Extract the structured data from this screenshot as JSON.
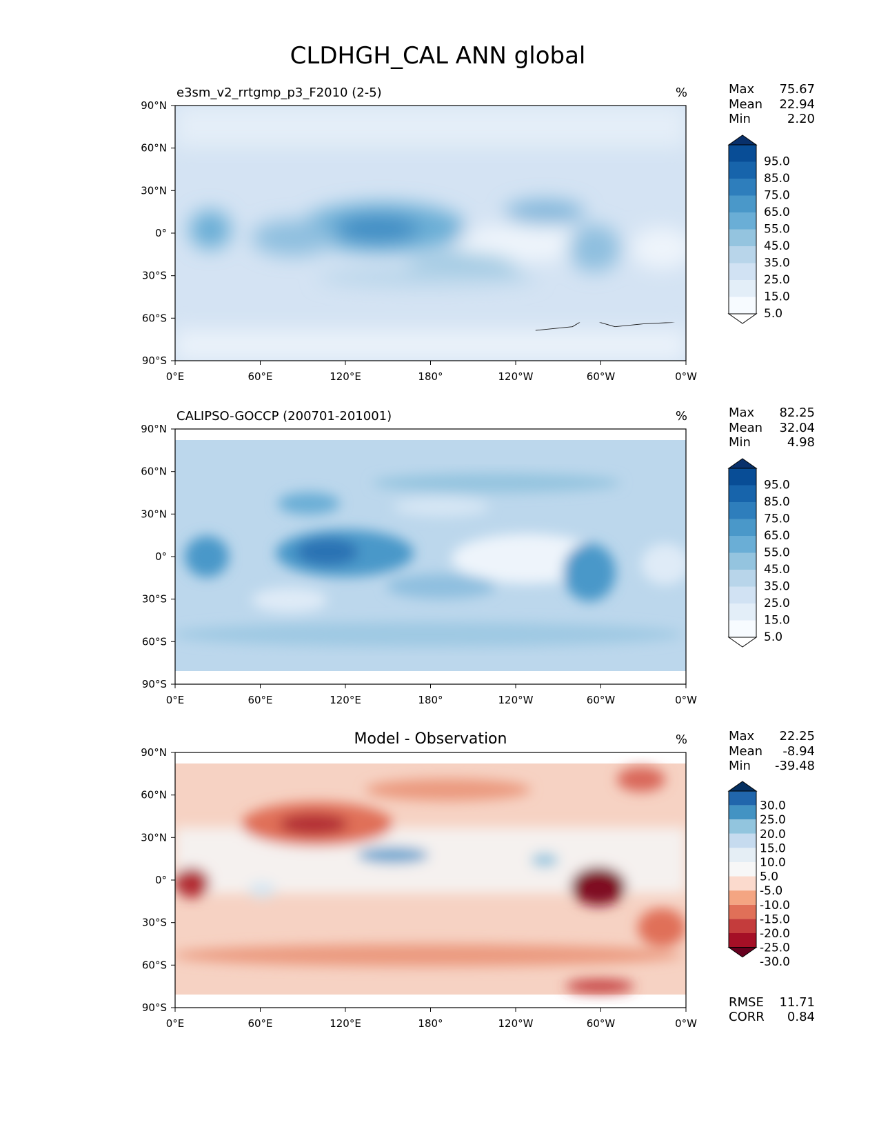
{
  "figure": {
    "title": "CLDHGH_CAL ANN global"
  },
  "x_tick_labels": [
    "0°E",
    "60°E",
    "120°E",
    "180°",
    "120°W",
    "60°W",
    "0°W"
  ],
  "y_tick_labels": [
    "90°N",
    "60°N",
    "30°N",
    "0°",
    "30°S",
    "60°S",
    "90°S"
  ],
  "chart_data": [
    {
      "type": "heatmap",
      "name": "model",
      "title": "",
      "left_title": "e3sm_v2_rrtgmp_p3_F2010 (2-5)",
      "units": "%",
      "stats": [
        {
          "label": "Max",
          "value": "75.67"
        },
        {
          "label": "Mean",
          "value": "22.94"
        },
        {
          "label": "Min",
          "value": "2.20"
        }
      ],
      "xlim": [
        0,
        360
      ],
      "ylim": [
        -90,
        90
      ],
      "colorbar": {
        "levels": [
          "95.0",
          "85.0",
          "75.0",
          "65.0",
          "55.0",
          "45.0",
          "35.0",
          "25.0",
          "15.0",
          "5.0"
        ],
        "colors": [
          "#08306b",
          "#084d96",
          "#1764ab",
          "#2e7ebc",
          "#4a98c9",
          "#6aaed6",
          "#94c4df",
          "#b8d5ea",
          "#d1e2f3",
          "#e3eef8",
          "#f7fbff"
        ]
      }
    },
    {
      "type": "heatmap",
      "name": "observation",
      "title": "",
      "left_title": "CALIPSO-GOCCP (200701-201001)",
      "units": "%",
      "stats": [
        {
          "label": "Max",
          "value": "82.25"
        },
        {
          "label": "Mean",
          "value": "32.04"
        },
        {
          "label": "Min",
          "value": "4.98"
        }
      ],
      "xlim": [
        0,
        360
      ],
      "ylim": [
        -90,
        90
      ],
      "colorbar": {
        "levels": [
          "95.0",
          "85.0",
          "75.0",
          "65.0",
          "55.0",
          "45.0",
          "35.0",
          "25.0",
          "15.0",
          "5.0"
        ],
        "colors": [
          "#08306b",
          "#084d96",
          "#1764ab",
          "#2e7ebc",
          "#4a98c9",
          "#6aaed6",
          "#94c4df",
          "#b8d5ea",
          "#d1e2f3",
          "#e3eef8",
          "#f7fbff"
        ]
      }
    },
    {
      "type": "heatmap",
      "name": "difference",
      "title": "Model - Observation",
      "left_title": "",
      "units": "%",
      "stats": [
        {
          "label": "Max",
          "value": "22.25"
        },
        {
          "label": "Mean",
          "value": "-8.94"
        },
        {
          "label": "Min",
          "value": "-39.48"
        }
      ],
      "bottom_stats": [
        {
          "label": "RMSE",
          "value": "11.71"
        },
        {
          "label": "CORR",
          "value": "0.84"
        }
      ],
      "xlim": [
        0,
        360
      ],
      "ylim": [
        -90,
        90
      ],
      "colorbar": {
        "levels": [
          "30.0",
          "25.0",
          "20.0",
          "15.0",
          "10.0",
          "5.0",
          "-5.0",
          "-10.0",
          "-15.0",
          "-20.0",
          "-25.0",
          "-30.0"
        ],
        "colors": [
          "#053061",
          "#2166ac",
          "#4393c3",
          "#92c5de",
          "#c6dbef",
          "#e5eef5",
          "#f7f7f7",
          "#fbdacd",
          "#f4a582",
          "#e07058",
          "#c43c3c",
          "#a50f26",
          "#67001f"
        ]
      }
    }
  ]
}
